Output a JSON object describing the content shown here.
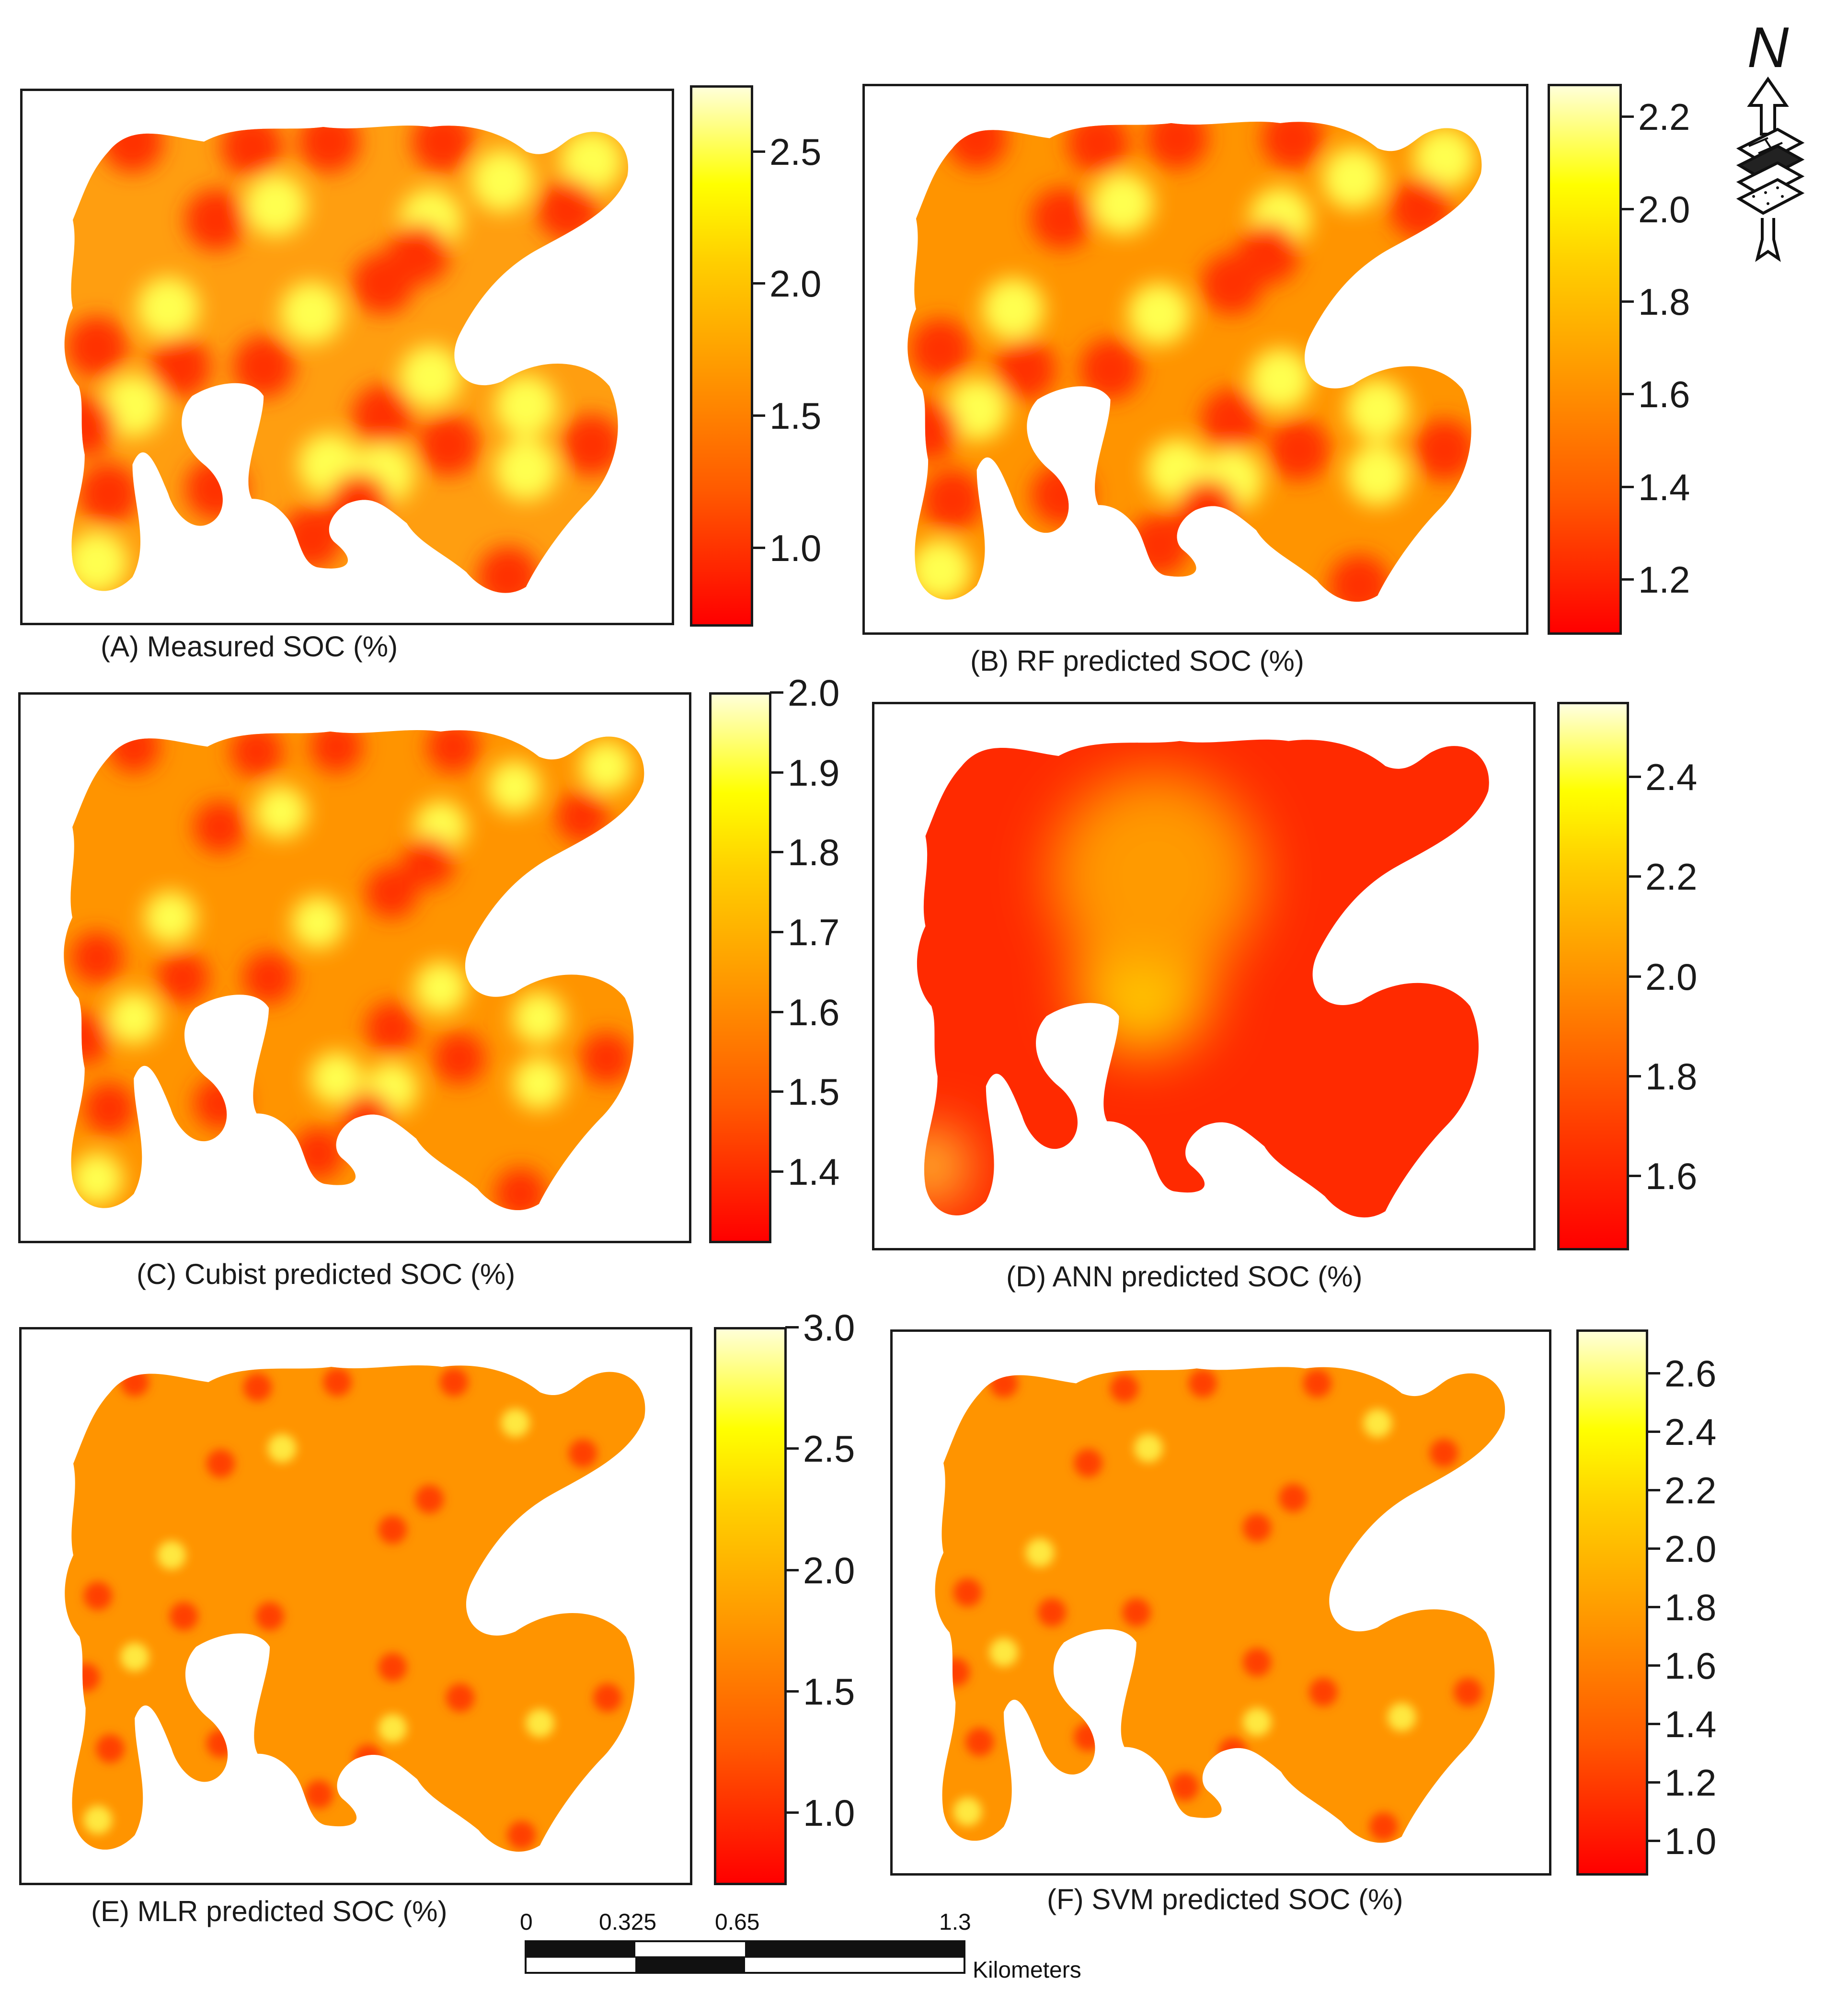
{
  "maps": [
    {
      "id": "A",
      "caption": "(A) Measured SOC (%)",
      "ticks": [
        "2.5",
        "2.0",
        "1.5",
        "1.0"
      ],
      "tick_values": [
        2.5,
        2.0,
        1.5,
        1.0
      ],
      "range": [
        0.7,
        2.75
      ]
    },
    {
      "id": "B",
      "caption": "(B) RF predicted SOC (%)",
      "ticks": [
        "2.2",
        "2.0",
        "1.8",
        "1.6",
        "1.4",
        "1.2"
      ],
      "tick_values": [
        2.2,
        2.0,
        1.8,
        1.6,
        1.4,
        1.2
      ],
      "range": [
        1.08,
        2.27
      ]
    },
    {
      "id": "C",
      "caption": "(C) Cubist predicted SOC (%)",
      "ticks": [
        "2.0",
        "1.9",
        "1.8",
        "1.7",
        "1.6",
        "1.5",
        "1.4"
      ],
      "tick_values": [
        2.0,
        1.9,
        1.8,
        1.7,
        1.6,
        1.5,
        1.4
      ],
      "range": [
        1.31,
        2.0
      ]
    },
    {
      "id": "D",
      "caption": "(D) ANN predicted SOC (%)",
      "ticks": [
        "2.4",
        "2.2",
        "2.0",
        "1.8",
        "1.6"
      ],
      "tick_values": [
        2.4,
        2.2,
        2.0,
        1.8,
        1.6
      ],
      "range": [
        1.45,
        2.55
      ]
    },
    {
      "id": "E",
      "caption": "(E) MLR predicted SOC (%)",
      "ticks": [
        "3.0",
        "2.5",
        "2.0",
        "1.5",
        "1.0"
      ],
      "tick_values": [
        3.0,
        2.5,
        2.0,
        1.5,
        1.0
      ],
      "range": [
        0.7,
        3.0
      ]
    },
    {
      "id": "F",
      "caption": "(F) SVM predicted SOC (%)",
      "ticks": [
        "2.6",
        "2.4",
        "2.2",
        "2.0",
        "1.8",
        "1.6",
        "1.4",
        "1.2",
        "1.0"
      ],
      "tick_values": [
        2.6,
        2.4,
        2.2,
        2.0,
        1.8,
        1.6,
        1.4,
        1.2,
        1.0
      ],
      "range": [
        0.88,
        2.75
      ]
    }
  ],
  "scale_bar": {
    "labels": [
      "0",
      "0.325",
      "0.65",
      "1.3"
    ],
    "unit": "Kilometers"
  },
  "north_arrow": {
    "label": "N"
  },
  "colors": {
    "low": "#ff0000",
    "mid": "#ff9a00",
    "high": "#ffff00",
    "top": "#ffffd8",
    "frame": "#1a1a1a"
  }
}
